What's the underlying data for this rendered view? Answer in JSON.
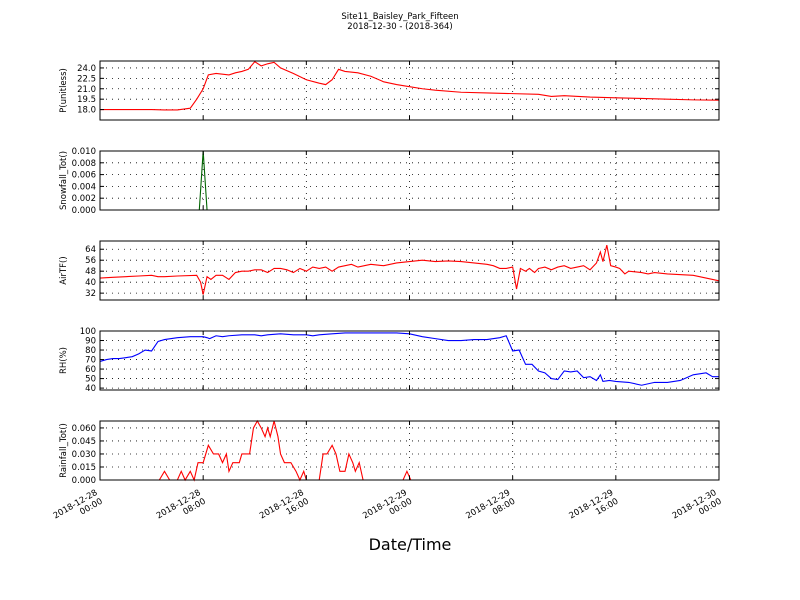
{
  "title": "Site11_Baisley_Park_Fifteen",
  "subtitle": "2018-12-30 - (2018-364)",
  "chart_data": {
    "xlabel": "Date/Time",
    "x_range_hours": [
      0,
      48
    ],
    "x_ticks": [
      {
        "hours": 0,
        "line1": "2018-12-28",
        "line2": "00:00"
      },
      {
        "hours": 8,
        "line1": "2018-12-28",
        "line2": "08:00"
      },
      {
        "hours": 16,
        "line1": "2018-12-28",
        "line2": "16:00"
      },
      {
        "hours": 24,
        "line1": "2018-12-29",
        "line2": "00:00"
      },
      {
        "hours": 32,
        "line1": "2018-12-29",
        "line2": "08:00"
      },
      {
        "hours": 40,
        "line1": "2018-12-29",
        "line2": "16:00"
      },
      {
        "hours": 48,
        "line1": "2018-12-30",
        "line2": "00:00"
      }
    ],
    "panels": [
      {
        "key": "p",
        "type": "line",
        "ylabel": "P(unitless)",
        "color": "#ff0000",
        "ylim": [
          16.5,
          25.0
        ],
        "yticks": [
          18.0,
          19.5,
          21.0,
          22.5,
          24.0
        ],
        "ytick_labels": [
          "18.0",
          "19.5",
          "21.0",
          "22.5",
          "24.0"
        ],
        "points": [
          [
            0,
            18.0
          ],
          [
            2,
            18.0
          ],
          [
            4,
            18.0
          ],
          [
            5,
            17.95
          ],
          [
            6,
            17.95
          ],
          [
            7,
            18.2
          ],
          [
            7.5,
            19.5
          ],
          [
            8,
            21.0
          ],
          [
            8.4,
            23.0
          ],
          [
            9,
            23.2
          ],
          [
            10,
            23.0
          ],
          [
            10.5,
            23.3
          ],
          [
            11,
            23.5
          ],
          [
            11.5,
            23.8
          ],
          [
            12,
            24.9
          ],
          [
            12.5,
            24.3
          ],
          [
            13,
            24.6
          ],
          [
            13.5,
            24.8
          ],
          [
            14,
            24.0
          ],
          [
            15,
            23.2
          ],
          [
            16,
            22.3
          ],
          [
            17,
            21.8
          ],
          [
            17.5,
            21.6
          ],
          [
            18,
            22.3
          ],
          [
            18.5,
            23.8
          ],
          [
            19,
            23.5
          ],
          [
            20,
            23.3
          ],
          [
            21,
            22.8
          ],
          [
            22,
            22.0
          ],
          [
            23,
            21.6
          ],
          [
            24,
            21.3
          ],
          [
            25,
            21.0
          ],
          [
            26,
            20.8
          ],
          [
            28,
            20.5
          ],
          [
            30,
            20.4
          ],
          [
            32,
            20.3
          ],
          [
            34,
            20.2
          ],
          [
            35,
            19.9
          ],
          [
            36,
            20.0
          ],
          [
            38,
            19.8
          ],
          [
            40,
            19.7
          ],
          [
            42,
            19.6
          ],
          [
            44,
            19.5
          ],
          [
            46,
            19.4
          ],
          [
            48,
            19.35
          ]
        ]
      },
      {
        "key": "snow",
        "type": "line",
        "ylabel": "Snowfall_Tot()",
        "color": "#006400",
        "ylim": [
          0,
          0.01
        ],
        "yticks": [
          0.0,
          0.002,
          0.004,
          0.006,
          0.008,
          0.01
        ],
        "ytick_labels": [
          "0.000",
          "0.002",
          "0.004",
          "0.006",
          "0.008",
          "0.010"
        ],
        "points": [
          [
            0,
            0
          ],
          [
            7.7,
            0
          ],
          [
            8.0,
            0.01
          ],
          [
            8.3,
            0
          ],
          [
            48,
            0
          ]
        ]
      },
      {
        "key": "airt",
        "type": "line",
        "ylabel": "AirTF()",
        "color": "#ff0000",
        "ylim": [
          27,
          70
        ],
        "yticks": [
          32,
          40,
          48,
          56,
          64
        ],
        "ytick_labels": [
          "32",
          "40",
          "48",
          "56",
          "64"
        ],
        "points": [
          [
            0,
            43
          ],
          [
            1,
            43.5
          ],
          [
            2,
            44
          ],
          [
            3,
            44.5
          ],
          [
            4,
            45
          ],
          [
            4.5,
            44
          ],
          [
            5,
            44
          ],
          [
            6,
            44.5
          ],
          [
            7.5,
            45
          ],
          [
            7.8,
            40
          ],
          [
            8.0,
            31
          ],
          [
            8.3,
            44
          ],
          [
            8.6,
            42
          ],
          [
            9,
            45
          ],
          [
            9.5,
            45
          ],
          [
            10,
            42
          ],
          [
            10.5,
            47
          ],
          [
            11,
            48
          ],
          [
            11.5,
            48
          ],
          [
            12,
            49
          ],
          [
            12.5,
            49
          ],
          [
            13,
            47
          ],
          [
            13.5,
            50
          ],
          [
            14,
            50
          ],
          [
            14.5,
            49
          ],
          [
            15,
            47
          ],
          [
            15.5,
            50
          ],
          [
            16,
            48
          ],
          [
            16.5,
            51
          ],
          [
            17,
            50
          ],
          [
            17.5,
            51
          ],
          [
            18,
            48
          ],
          [
            18.5,
            51
          ],
          [
            19,
            52
          ],
          [
            19.5,
            53
          ],
          [
            20,
            51
          ],
          [
            20.5,
            52
          ],
          [
            21,
            53
          ],
          [
            22,
            52
          ],
          [
            23,
            54
          ],
          [
            24,
            55
          ],
          [
            25,
            56
          ],
          [
            26,
            55
          ],
          [
            27,
            55.5
          ],
          [
            28,
            55
          ],
          [
            29,
            54
          ],
          [
            30,
            53
          ],
          [
            30.5,
            52
          ],
          [
            31,
            50
          ],
          [
            31.5,
            50
          ],
          [
            32,
            51
          ],
          [
            32.3,
            35
          ],
          [
            32.6,
            50
          ],
          [
            33,
            48
          ],
          [
            33.3,
            50
          ],
          [
            33.7,
            47
          ],
          [
            34,
            50
          ],
          [
            34.5,
            51
          ],
          [
            35,
            49
          ],
          [
            35.5,
            51
          ],
          [
            36,
            52
          ],
          [
            36.5,
            50
          ],
          [
            37,
            51
          ],
          [
            37.5,
            52
          ],
          [
            38,
            49
          ],
          [
            38.5,
            54
          ],
          [
            38.8,
            62
          ],
          [
            39,
            55
          ],
          [
            39.3,
            67
          ],
          [
            39.6,
            52
          ],
          [
            40,
            51
          ],
          [
            40.3,
            50
          ],
          [
            40.7,
            46
          ],
          [
            41,
            48
          ],
          [
            42,
            47
          ],
          [
            42.5,
            46
          ],
          [
            43,
            47
          ],
          [
            44,
            46
          ],
          [
            46,
            45
          ],
          [
            48,
            41
          ]
        ]
      },
      {
        "key": "rh",
        "type": "line",
        "ylabel": "RH(%)",
        "color": "#0000ff",
        "ylim": [
          38,
          100
        ],
        "yticks": [
          40,
          50,
          60,
          70,
          80,
          90,
          100
        ],
        "ytick_labels": [
          "40",
          "50",
          "60",
          "70",
          "80",
          "90",
          "100"
        ],
        "points": [
          [
            0,
            68
          ],
          [
            0.5,
            70
          ],
          [
            1,
            71
          ],
          [
            1.5,
            71
          ],
          [
            2,
            72
          ],
          [
            2.5,
            73
          ],
          [
            3,
            76
          ],
          [
            3.5,
            80
          ],
          [
            4,
            79
          ],
          [
            4.5,
            89
          ],
          [
            5,
            91
          ],
          [
            6,
            93
          ],
          [
            7,
            94
          ],
          [
            7.5,
            94
          ],
          [
            8,
            94
          ],
          [
            8.3,
            93
          ],
          [
            8.5,
            92
          ],
          [
            9,
            95
          ],
          [
            9.5,
            94
          ],
          [
            10,
            95
          ],
          [
            11,
            96
          ],
          [
            12,
            96
          ],
          [
            12.5,
            95
          ],
          [
            13,
            96
          ],
          [
            14,
            97
          ],
          [
            15,
            96
          ],
          [
            16,
            96
          ],
          [
            16.5,
            95
          ],
          [
            17,
            96
          ],
          [
            18,
            97
          ],
          [
            19,
            98
          ],
          [
            20,
            98
          ],
          [
            21,
            98
          ],
          [
            22,
            98
          ],
          [
            23,
            98
          ],
          [
            24,
            97
          ],
          [
            25,
            94
          ],
          [
            26,
            92
          ],
          [
            27,
            90
          ],
          [
            28,
            90
          ],
          [
            29,
            91
          ],
          [
            30,
            91
          ],
          [
            31,
            93
          ],
          [
            31.5,
            95
          ],
          [
            32,
            79
          ],
          [
            32.5,
            80
          ],
          [
            33,
            65
          ],
          [
            33.5,
            65
          ],
          [
            34,
            58
          ],
          [
            34.5,
            56
          ],
          [
            35,
            50
          ],
          [
            35.5,
            49
          ],
          [
            36,
            58
          ],
          [
            36.5,
            57
          ],
          [
            37,
            58
          ],
          [
            37.5,
            51
          ],
          [
            38,
            52
          ],
          [
            38.5,
            48
          ],
          [
            38.8,
            54
          ],
          [
            39,
            47
          ],
          [
            39.5,
            48
          ],
          [
            40,
            47
          ],
          [
            41,
            46
          ],
          [
            42,
            43
          ],
          [
            43,
            46
          ],
          [
            44,
            46
          ],
          [
            45,
            48
          ],
          [
            46,
            54
          ],
          [
            47,
            56
          ],
          [
            47.5,
            52
          ],
          [
            48,
            52
          ]
        ]
      },
      {
        "key": "rain",
        "type": "line",
        "ylabel": "Rainfall_Tot()",
        "color": "#ff0000",
        "ylim": [
          0,
          0.068
        ],
        "yticks": [
          0.0,
          0.015,
          0.03,
          0.045,
          0.06
        ],
        "ytick_labels": [
          "0.000",
          "0.015",
          "0.030",
          "0.045",
          "0.060"
        ],
        "points": [
          [
            0,
            0
          ],
          [
            4.6,
            0
          ],
          [
            5,
            0.01
          ],
          [
            5.4,
            0
          ],
          [
            6,
            0
          ],
          [
            6.3,
            0.01
          ],
          [
            6.6,
            0
          ],
          [
            7,
            0.01
          ],
          [
            7.3,
            0
          ],
          [
            7.6,
            0.02
          ],
          [
            8,
            0.02
          ],
          [
            8.4,
            0.04
          ],
          [
            8.8,
            0.03
          ],
          [
            9.2,
            0.03
          ],
          [
            9.5,
            0.02
          ],
          [
            9.8,
            0.03
          ],
          [
            10,
            0.01
          ],
          [
            10.3,
            0.02
          ],
          [
            10.8,
            0.02
          ],
          [
            11,
            0.03
          ],
          [
            11.4,
            0.03
          ],
          [
            11.6,
            0.03
          ],
          [
            11.9,
            0.06
          ],
          [
            12.2,
            0.068
          ],
          [
            12.5,
            0.06
          ],
          [
            12.8,
            0.05
          ],
          [
            13,
            0.06
          ],
          [
            13.2,
            0.05
          ],
          [
            13.5,
            0.068
          ],
          [
            13.8,
            0.05
          ],
          [
            14,
            0.03
          ],
          [
            14.3,
            0.02
          ],
          [
            14.8,
            0.02
          ],
          [
            15.2,
            0.01
          ],
          [
            15.5,
            0
          ],
          [
            15.8,
            0.01
          ],
          [
            16,
            0
          ],
          [
            16.4,
            0
          ],
          [
            16.8,
            0
          ],
          [
            17,
            0
          ],
          [
            17.3,
            0.03
          ],
          [
            17.6,
            0.03
          ],
          [
            18,
            0.04
          ],
          [
            18.3,
            0.03
          ],
          [
            18.6,
            0.01
          ],
          [
            19,
            0.01
          ],
          [
            19.3,
            0.03
          ],
          [
            19.6,
            0.02
          ],
          [
            19.8,
            0.01
          ],
          [
            20.1,
            0.02
          ],
          [
            20.4,
            0
          ],
          [
            23.5,
            0
          ],
          [
            23.8,
            0.01
          ],
          [
            24.1,
            0
          ],
          [
            48,
            0
          ]
        ]
      }
    ]
  }
}
